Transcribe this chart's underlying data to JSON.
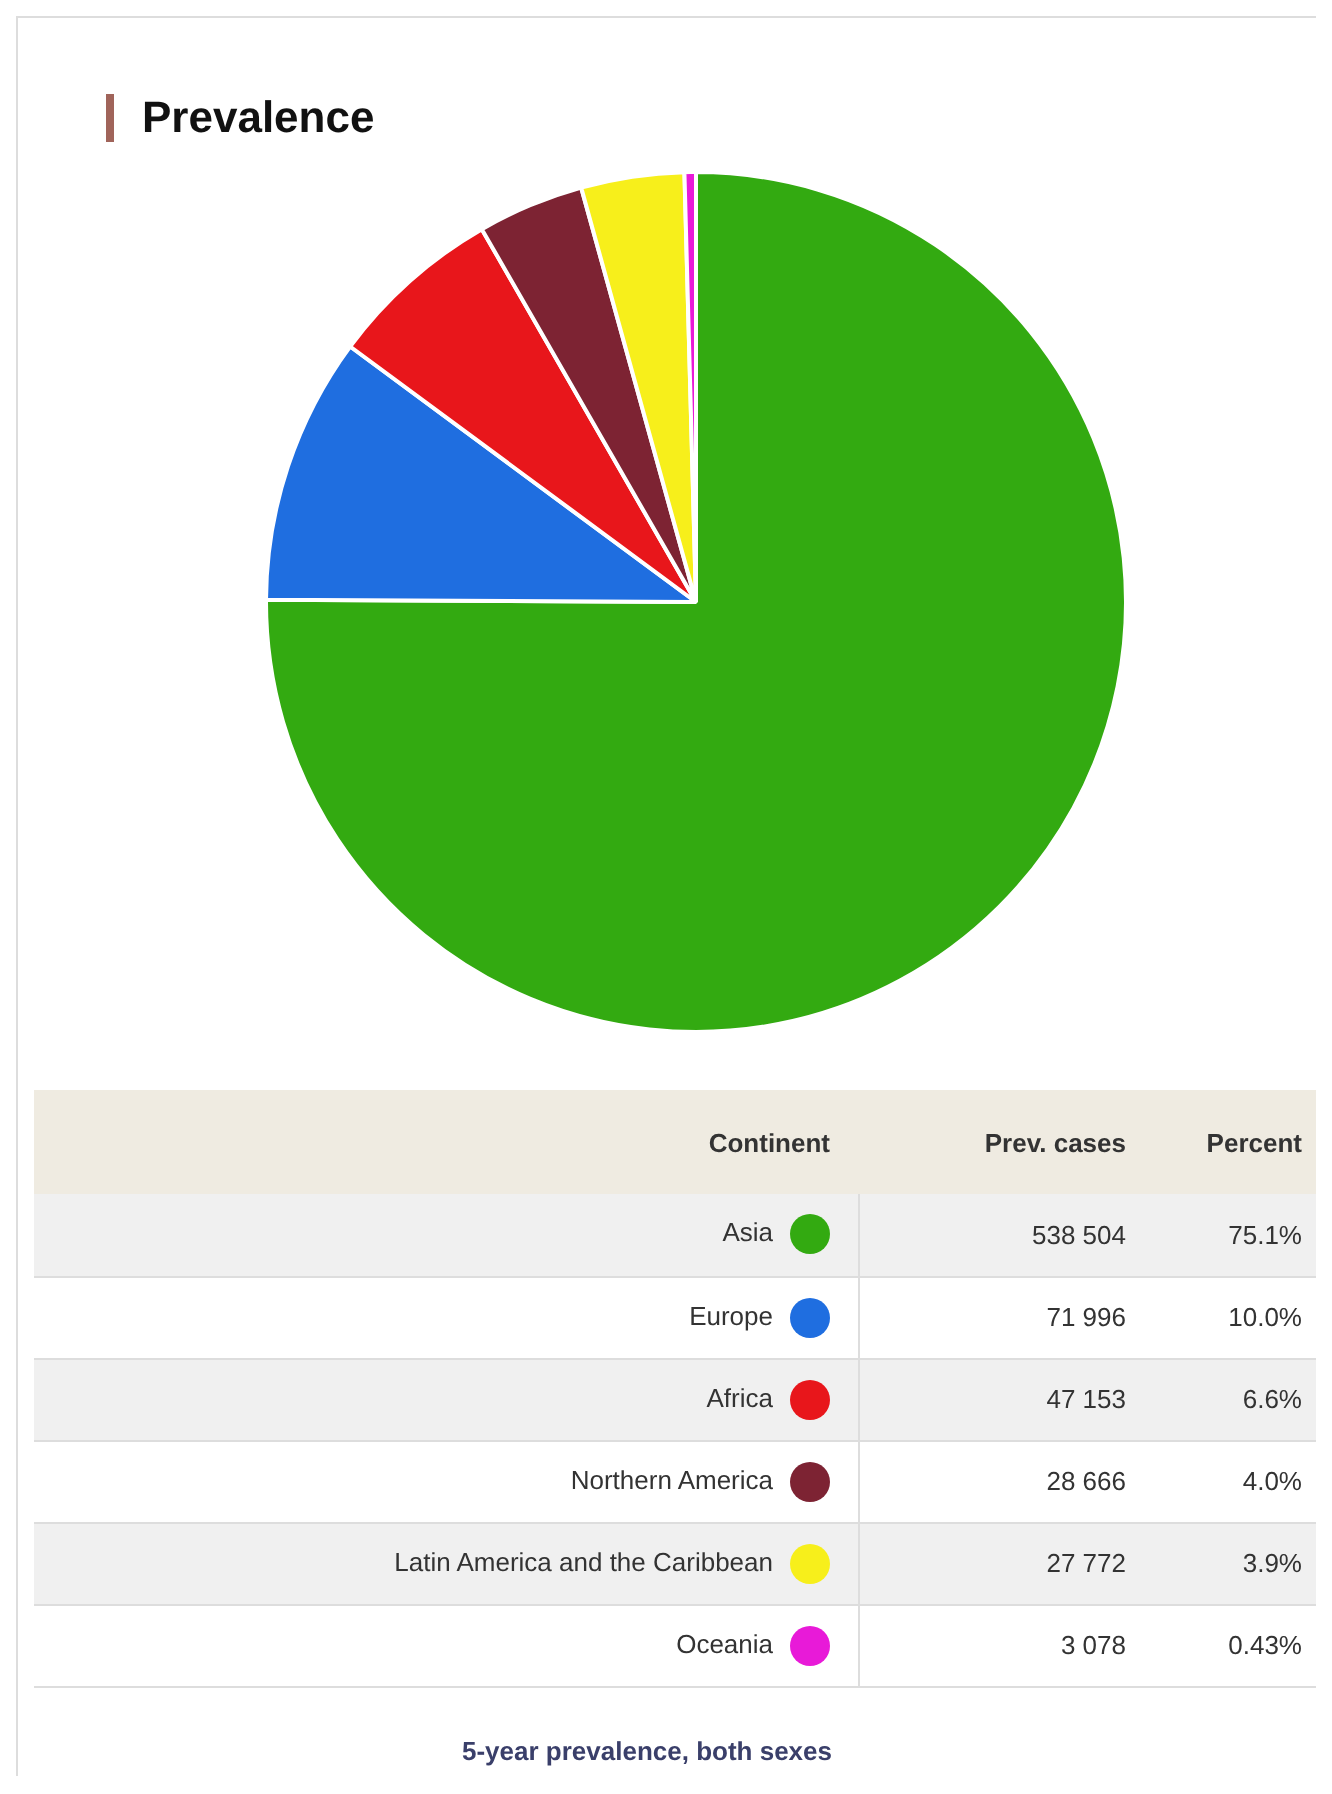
{
  "chart_data": {
    "type": "pie",
    "title": "Prevalence",
    "categories": [
      "Asia",
      "Europe",
      "Africa",
      "Northern America",
      "Latin America and the Caribbean",
      "Oceania"
    ],
    "values": [
      538504,
      71996,
      47153,
      28666,
      27772,
      3078
    ],
    "value_labels": [
      "538 504",
      "71 996",
      "47 153",
      "28 666",
      "27 772",
      "3 078"
    ],
    "colors": [
      "#33aa11",
      "#1f6ee0",
      "#e8161b",
      "#7d2333",
      "#f7ef1b",
      "#e81ad8"
    ],
    "legend": "bottom",
    "legend_title": "Continent",
    "annotations": [
      "Prev. cases",
      "Percent",
      "75.1%",
      "10.0%",
      "6.6%",
      "4.0%",
      "3.9%",
      "0.43%",
      "5-year prevalence, both sexes"
    ]
  }
}
